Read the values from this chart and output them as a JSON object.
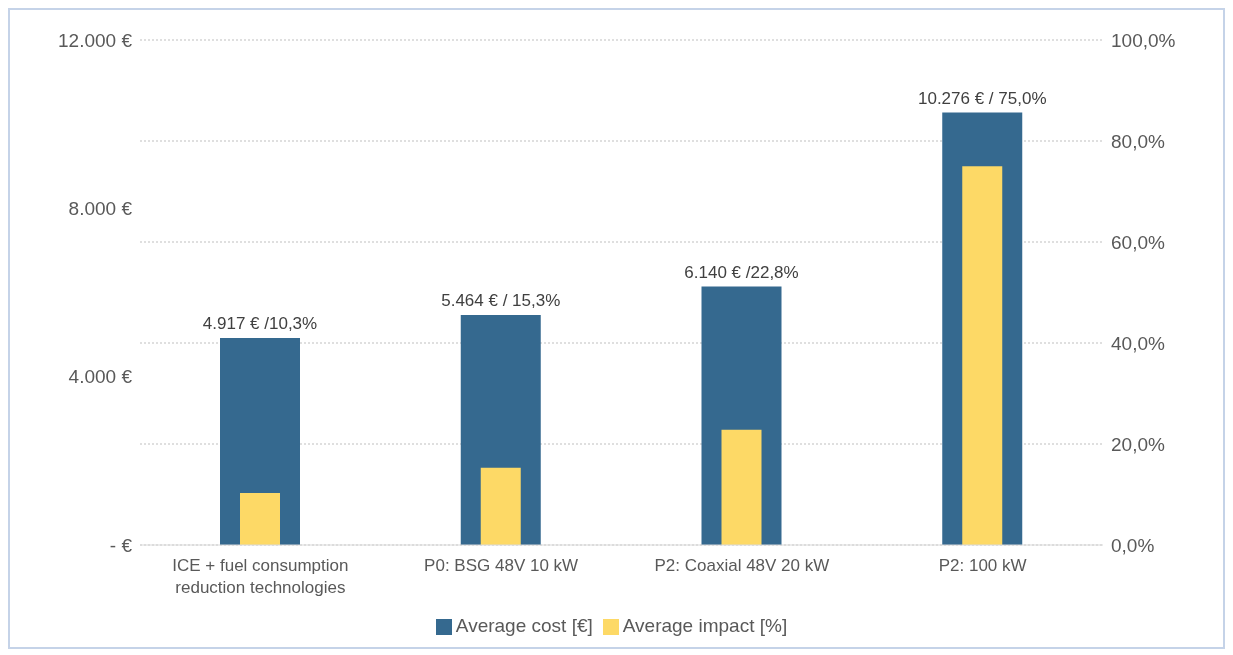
{
  "chart_data": {
    "type": "bar",
    "categories": [
      "ICE + fuel consumption reduction technologies",
      "P0: BSG 48V 10 kW",
      "P2: Coaxial 48V 20 kW",
      "P2: 100 kW"
    ],
    "series": [
      {
        "name": "Average cost [€]",
        "color": "#35698f",
        "values": [
          4917,
          5464,
          6140,
          10276
        ],
        "value_labels": [
          "4.917 € /10,3%",
          "5.464 € / 15,3%",
          "6.140 € /22,8%",
          "10.276 € / 75,0%"
        ]
      },
      {
        "name": "Average impact [%]",
        "color": "#fdd966",
        "values": [
          10.3,
          15.3,
          22.8,
          75.0
        ],
        "axis": "y2"
      }
    ],
    "ylim": [
      0,
      12000
    ],
    "yticks": [
      {
        "value": 0,
        "label": "-  €"
      },
      {
        "value": 4000,
        "label": "4.000 €"
      },
      {
        "value": 8000,
        "label": "8.000 €"
      },
      {
        "value": 12000,
        "label": "12.000 €"
      }
    ],
    "y2lim": [
      0,
      100
    ],
    "y2ticks": [
      {
        "value": 0,
        "label": "0,0%"
      },
      {
        "value": 20,
        "label": "20,0%"
      },
      {
        "value": 40,
        "label": "40,0%"
      },
      {
        "value": 60,
        "label": "60,0%"
      },
      {
        "value": 80,
        "label": "80,0%"
      },
      {
        "value": 100,
        "label": "100,0%"
      }
    ],
    "grid": "y2",
    "legend": "bottom"
  }
}
